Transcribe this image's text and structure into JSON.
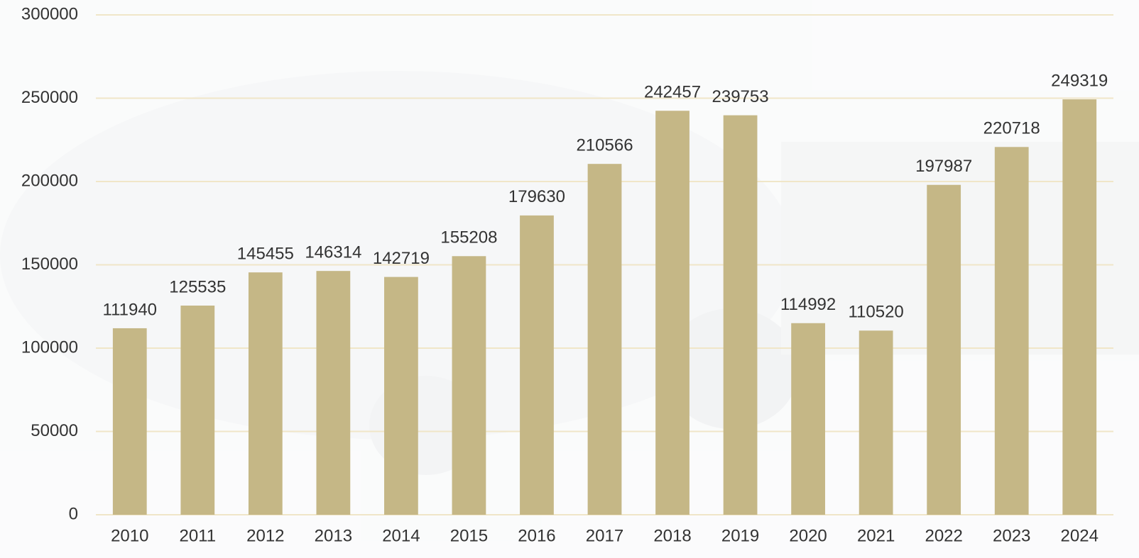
{
  "chart_data": {
    "type": "bar",
    "categories": [
      "2010",
      "2011",
      "2012",
      "2013",
      "2014",
      "2015",
      "2016",
      "2017",
      "2018",
      "2019",
      "2020",
      "2021",
      "2022",
      "2023",
      "2024"
    ],
    "values": [
      111940,
      125535,
      145455,
      146314,
      142719,
      155208,
      179630,
      210566,
      242457,
      239753,
      114992,
      110520,
      197987,
      220718,
      249319
    ],
    "color": "#c5b786",
    "ylim": [
      0,
      300000
    ],
    "yticks": [
      0,
      50000,
      100000,
      150000,
      200000,
      250000,
      300000
    ],
    "grid": true
  }
}
